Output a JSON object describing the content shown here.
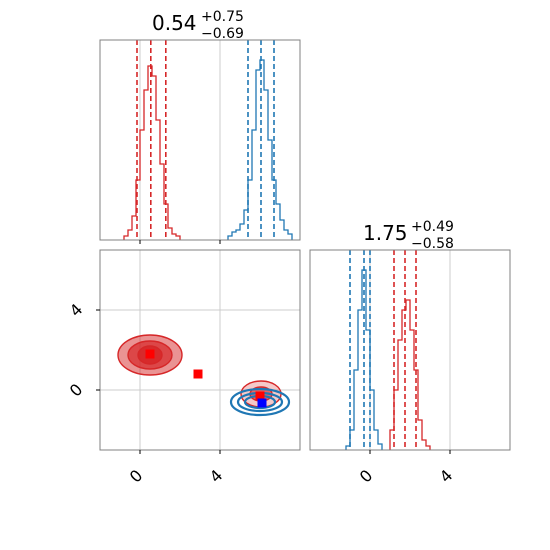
{
  "chart_data": {
    "type": "corner",
    "colors": {
      "red": "#d62728",
      "blue": "#1f77b4",
      "red_marker": "#ff0000",
      "blue_marker": "#0000ff"
    },
    "grid": true,
    "parameters": [
      {
        "title_value": "0.54",
        "title_plus": "+0.75",
        "title_minus": "−0.69",
        "range": [
          -2,
          8
        ],
        "ticks": [
          {
            "value": 0,
            "label": "0"
          },
          {
            "value": 4,
            "label": "4"
          }
        ]
      },
      {
        "title_value": "1.75",
        "title_plus": "+0.49",
        "title_minus": "−0.58",
        "range": [
          -3,
          7
        ],
        "ticks": [
          {
            "value": 0,
            "label": "0"
          },
          {
            "value": 4,
            "label": "4"
          }
        ]
      }
    ],
    "y_ticks_2d": [
      {
        "value": 0,
        "label": "0"
      },
      {
        "value": 4,
        "label": "4"
      }
    ],
    "hist_1": {
      "red": {
        "quantiles": [
          -0.15,
          0.54,
          1.29
        ],
        "bins": [
          [
            -0.8,
            0.02
          ],
          [
            -0.6,
            0.05
          ],
          [
            -0.4,
            0.12
          ],
          [
            -0.2,
            0.3
          ],
          [
            0.0,
            0.55
          ],
          [
            0.2,
            0.75
          ],
          [
            0.4,
            0.87
          ],
          [
            0.6,
            0.82
          ],
          [
            0.8,
            0.6
          ],
          [
            1.0,
            0.38
          ],
          [
            1.2,
            0.18
          ],
          [
            1.4,
            0.06
          ],
          [
            1.6,
            0.03
          ],
          [
            1.8,
            0.02
          ]
        ]
      },
      "blue": {
        "quantiles": [
          5.4,
          6.05,
          6.7
        ],
        "bins": [
          [
            4.4,
            0.02
          ],
          [
            4.6,
            0.04
          ],
          [
            4.8,
            0.05
          ],
          [
            5.0,
            0.08
          ],
          [
            5.2,
            0.15
          ],
          [
            5.4,
            0.3
          ],
          [
            5.6,
            0.55
          ],
          [
            5.8,
            0.85
          ],
          [
            6.0,
            0.9
          ],
          [
            6.2,
            0.75
          ],
          [
            6.4,
            0.5
          ],
          [
            6.6,
            0.3
          ],
          [
            6.8,
            0.18
          ],
          [
            7.0,
            0.1
          ],
          [
            7.2,
            0.05
          ],
          [
            7.4,
            0.03
          ]
        ]
      }
    },
    "hist_2": {
      "blue": {
        "quantiles": [
          -1.0,
          -0.3,
          0.0
        ],
        "bins": [
          [
            -1.2,
            0.02
          ],
          [
            -1.0,
            0.1
          ],
          [
            -0.8,
            0.4
          ],
          [
            -0.6,
            0.7
          ],
          [
            -0.4,
            0.9
          ],
          [
            -0.2,
            0.6
          ],
          [
            0.0,
            0.3
          ],
          [
            0.2,
            0.1
          ],
          [
            0.4,
            0.03
          ]
        ]
      },
      "red": {
        "quantiles": [
          1.2,
          1.75,
          2.3
        ],
        "bins": [
          [
            1.0,
            0.1
          ],
          [
            1.2,
            0.3
          ],
          [
            1.4,
            0.55
          ],
          [
            1.6,
            0.7
          ],
          [
            1.8,
            0.75
          ],
          [
            2.0,
            0.6
          ],
          [
            2.2,
            0.4
          ],
          [
            2.4,
            0.15
          ],
          [
            2.6,
            0.05
          ],
          [
            2.8,
            0.02
          ]
        ]
      }
    },
    "scatter_2d": {
      "red_marker": [
        0.5,
        1.8
      ],
      "red_marker_2": [
        2.9,
        0.8
      ],
      "red_marker_3": [
        6.0,
        -0.3
      ],
      "blue_marker": [
        6.1,
        -0.65
      ]
    },
    "contours_2d": [
      {
        "color": "red",
        "filled": true,
        "cx": 0.5,
        "cy": 1.75,
        "levels": [
          [
            1.6,
            1.0,
            0.5
          ],
          [
            1.1,
            0.7,
            0.7
          ],
          [
            0.6,
            0.45,
            0.9
          ]
        ]
      },
      {
        "color": "red",
        "filled": true,
        "cx": 6.05,
        "cy": -0.2,
        "levels": [
          [
            1.0,
            0.65,
            0.25
          ],
          [
            0.55,
            0.35,
            0.6
          ]
        ]
      },
      {
        "color": "blue",
        "filled": false,
        "cx": 6.0,
        "cy": -0.6,
        "levels": [
          [
            1.45,
            0.65,
            0
          ],
          [
            1.1,
            0.45,
            0
          ],
          [
            0.75,
            0.3,
            0
          ]
        ]
      }
    ]
  }
}
